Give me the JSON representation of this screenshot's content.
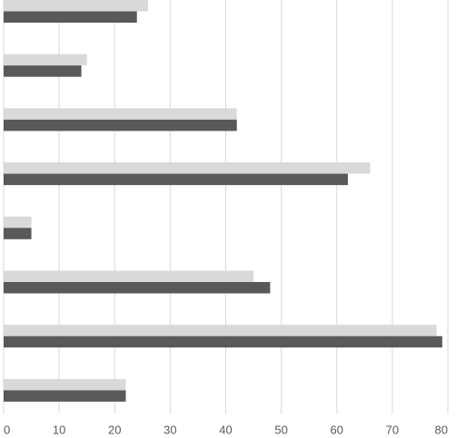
{
  "chart_data": {
    "type": "hbar",
    "categories": [
      null,
      null,
      null,
      null,
      null,
      null,
      null,
      null
    ],
    "series": [
      {
        "color": "#d9d9d9",
        "values": [
          26,
          15,
          42,
          66,
          5,
          45,
          78,
          22
        ]
      },
      {
        "color": "#595959",
        "values": [
          24,
          14,
          42,
          62,
          5,
          48,
          79,
          22
        ]
      }
    ],
    "xlim": [
      0,
      80
    ],
    "xticks": [
      0,
      10,
      20,
      30,
      40,
      50,
      60,
      70,
      80
    ],
    "grid": true
  }
}
